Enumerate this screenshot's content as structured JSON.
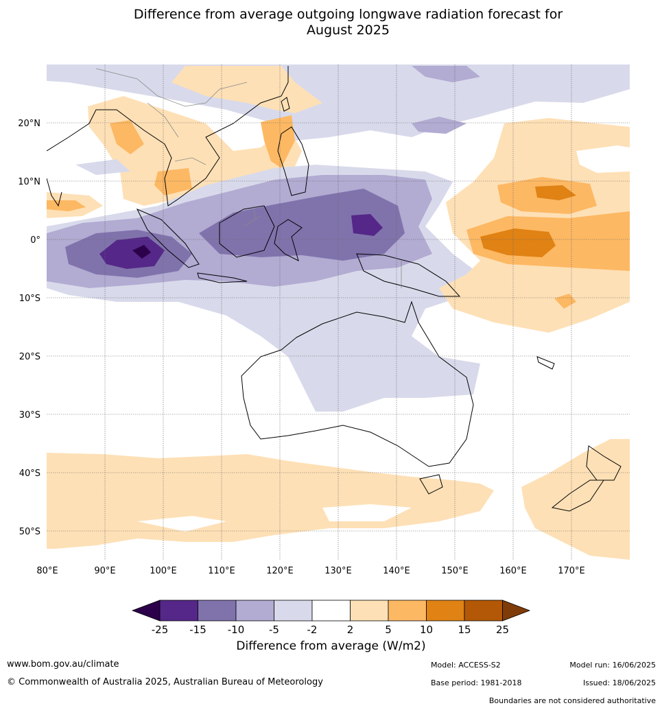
{
  "title_line1": "Difference from average outgoing longwave radiation forecast for",
  "title_line2": "August 2025",
  "map": {
    "lon_ticks": [
      "80°E",
      "90°E",
      "100°E",
      "110°E",
      "120°E",
      "130°E",
      "140°E",
      "150°E",
      "160°E",
      "170°E"
    ],
    "lat_ticks": [
      "20°N",
      "10°N",
      "0°",
      "10°S",
      "20°S",
      "30°S",
      "40°S",
      "50°S"
    ],
    "lon_range": [
      80,
      180
    ],
    "lat_range": [
      -55,
      30
    ],
    "gridlines": true
  },
  "colorbar": {
    "title": "Difference from average (W/m2)",
    "bounds": [
      "-25",
      "-15",
      "-10",
      "-5",
      "-2",
      "2",
      "5",
      "10",
      "15",
      "25"
    ],
    "colors": {
      "below_-25": "#2d004b",
      "-25_-15": "#542788",
      "-15_-10": "#8073ac",
      "-10_-5": "#b2abd2",
      "-5_-2": "#d8daeb",
      "-2_2": "#ffffff",
      "2_5": "#fee0b6",
      "5_10": "#fdb863",
      "10_15": "#e08214",
      "15_25": "#b35806",
      "above_25": "#7f3b08"
    }
  },
  "footer": {
    "website": "www.bom.gov.au/climate",
    "copyright": "© Commonwealth of Australia 2025, Australian Bureau of Meteorology",
    "model": "Model: ACCESS-S2",
    "base_period": "Base period: 1981-2018",
    "model_run": "Model run: 16/06/2025",
    "issued": "Issued: 18/06/2025",
    "disclaimer": "Boundaries are not considered authoritative"
  }
}
